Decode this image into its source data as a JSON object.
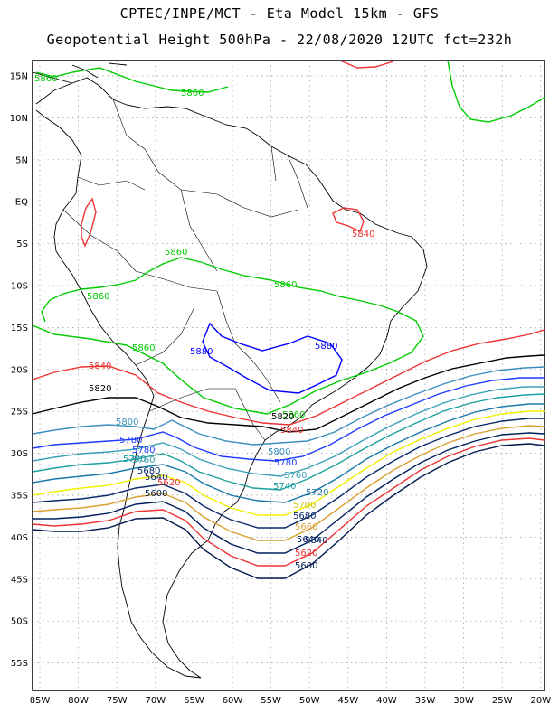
{
  "title_line1": "CPTEC/INPE/MCT -  Eta Model 15km - GFS",
  "title_line2": "Geopotential Height 500hPa - 22/08/2020 12UTC fct=232h",
  "lat_labels": [
    "15N",
    "10N",
    "5N",
    "EQ",
    "5S",
    "10S",
    "15S",
    "20S",
    "25S",
    "30S",
    "35S",
    "40S",
    "45S",
    "50S",
    "55S"
  ],
  "lon_labels": [
    "85W",
    "80W",
    "75W",
    "70W",
    "65W",
    "60W",
    "55W",
    "50W",
    "45W",
    "40W",
    "35W",
    "30W",
    "25W",
    "20W"
  ],
  "colors": {
    "c5880": "#0000ff",
    "c5860": "#00cc00",
    "c5840": "#ee3333",
    "c5820": "#000000",
    "c5800": "#3a8fbf",
    "c5780": "#1e3cff",
    "c5760": "#3aa0b8",
    "c5740": "#1aa0a0",
    "c5720": "#1878a8",
    "c5700": "#f0f000",
    "c5680": "#0a2a6a",
    "c5660": "#d8a030",
    "c5640": "#002060",
    "c5620": "#ee3333",
    "c5600": "#001a50",
    "coast": "#000000"
  },
  "contours": [
    {
      "id": "5880-a",
      "label": "5880"
    },
    {
      "id": "5880-b",
      "label": "5880"
    },
    {
      "id": "5860-a",
      "label": "5860"
    },
    {
      "id": "5860-b",
      "label": "5860"
    },
    {
      "id": "5860-c",
      "label": "5860"
    },
    {
      "id": "5860-d",
      "label": "5860"
    },
    {
      "id": "5860-e",
      "label": "5860"
    },
    {
      "id": "5860-f",
      "label": "5860"
    },
    {
      "id": "5860-g",
      "label": "5860"
    },
    {
      "id": "5840-a",
      "label": "5840"
    },
    {
      "id": "5840-b",
      "label": "5840"
    },
    {
      "id": "5840-c",
      "label": "5840"
    },
    {
      "id": "5840-d",
      "label": "5840"
    },
    {
      "id": "5820-a",
      "label": "5820"
    },
    {
      "id": "5820-b",
      "label": "5820"
    },
    {
      "id": "5800-a",
      "label": "5800"
    },
    {
      "id": "5800-b",
      "label": "5800"
    },
    {
      "id": "5780-a",
      "label": "5780"
    },
    {
      "id": "5780-b",
      "label": "5780"
    },
    {
      "id": "5780-c",
      "label": "5780"
    },
    {
      "id": "5760-a",
      "label": "5760"
    },
    {
      "id": "5760-b",
      "label": "5760"
    },
    {
      "id": "5740-a",
      "label": "5740"
    },
    {
      "id": "5740-b",
      "label": "5740"
    },
    {
      "id": "5720-a",
      "label": "5720"
    },
    {
      "id": "5700-a",
      "label": "5700"
    },
    {
      "id": "5680-a",
      "label": "5680"
    },
    {
      "id": "5680-b",
      "label": "5680"
    },
    {
      "id": "5660-a",
      "label": "5660"
    },
    {
      "id": "5640-a",
      "label": "5640"
    },
    {
      "id": "5640-b",
      "label": "5640"
    },
    {
      "id": "5620-a",
      "label": "5620"
    },
    {
      "id": "5620-b",
      "label": "5620"
    },
    {
      "id": "5600-a",
      "label": "5600"
    },
    {
      "id": "5600-b",
      "label": "5600"
    }
  ]
}
